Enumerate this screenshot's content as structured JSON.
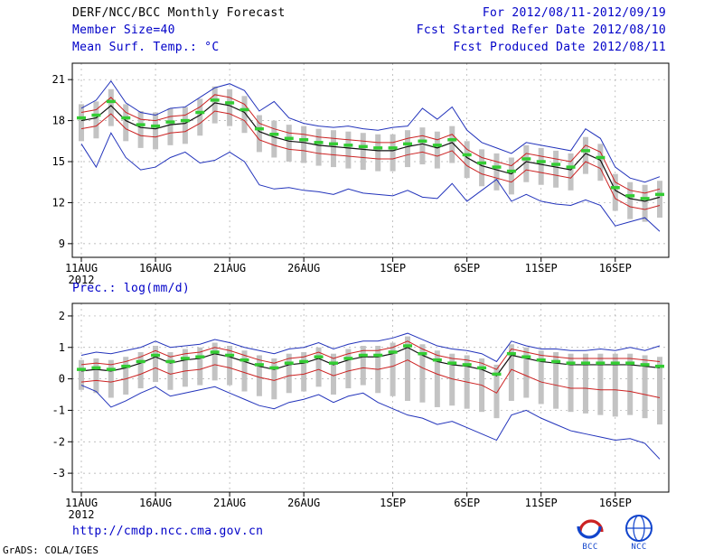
{
  "header": {
    "title": "DERF/NCC/BCC Monthly Forecast",
    "for_range": "For 2012/08/11-2012/09/19",
    "member_size": "Member Size=40",
    "refer_date": "Fcst Started Refer Date 2012/08/10",
    "temp_label": "Mean Surf. Temp.: °C",
    "produced_date": "Fcst Produced Date 2012/08/11"
  },
  "labels": {
    "precip": "Prec.: log(mm/d)"
  },
  "footer": {
    "url": "http://cmdp.ncc.cma.gov.cn",
    "grads_credit": "GrADS: COLA/IGES",
    "bcc_label": "BCC",
    "ncc_label": "NCC"
  },
  "colors": {
    "text_blue": "#0000c8",
    "line_blue": "#2233bb",
    "line_red": "#cc2222",
    "line_black": "#111111",
    "marker_green": "#33cc33",
    "bar_gray": "#c3c3c3",
    "grid_gray": "#aaaaaa"
  },
  "chart_data": [
    {
      "type": "line",
      "title": "Mean Surf. Temp.: °C",
      "xlabel": "",
      "ylabel": "°C",
      "grid": true,
      "legend": "none",
      "n_days": 40,
      "start_date": "2012/08/11",
      "end_date": "2012/09/19",
      "x_tick_labels": [
        "11AUG",
        "16AUG",
        "21AUG",
        "26AUG",
        "1SEP",
        "6SEP",
        "11SEP",
        "16SEP"
      ],
      "x_tick_days": [
        0,
        5,
        10,
        15,
        21,
        26,
        31,
        36
      ],
      "x_year_label": "2012",
      "yticks": [
        9,
        12,
        15,
        18,
        21
      ],
      "ylim": [
        8.0,
        22.2
      ],
      "bars": {
        "name": "ensemble-spread-bar",
        "top": [
          19.2,
          19.4,
          20.3,
          19.2,
          18.7,
          18.6,
          18.9,
          19.0,
          19.6,
          20.5,
          20.3,
          19.8,
          18.4,
          18.0,
          17.7,
          17.6,
          17.4,
          17.3,
          17.2,
          17.1,
          17.0,
          17.0,
          17.3,
          17.5,
          17.2,
          17.6,
          16.5,
          15.9,
          15.6,
          15.3,
          16.2,
          16.0,
          15.8,
          15.6,
          16.8,
          16.3,
          14.1,
          13.5,
          13.3,
          13.6
        ],
        "bottom": [
          16.5,
          16.7,
          17.6,
          16.5,
          16.0,
          15.9,
          16.2,
          16.3,
          16.9,
          17.8,
          17.6,
          17.1,
          15.7,
          15.3,
          15.0,
          14.9,
          14.7,
          14.6,
          14.5,
          14.4,
          14.3,
          14.3,
          14.6,
          14.8,
          14.5,
          14.9,
          13.8,
          13.2,
          12.9,
          12.6,
          13.5,
          13.3,
          13.1,
          12.9,
          14.1,
          13.6,
          11.4,
          10.8,
          10.6,
          10.9
        ]
      },
      "series": [
        {
          "name": "ensemble-max",
          "color": "#2233bb",
          "width": 1,
          "style": "line",
          "values": [
            18.9,
            19.5,
            20.9,
            19.3,
            18.6,
            18.4,
            18.9,
            19.0,
            19.7,
            20.4,
            20.7,
            20.2,
            18.7,
            19.4,
            18.2,
            17.8,
            17.6,
            17.5,
            17.6,
            17.4,
            17.3,
            17.5,
            17.6,
            18.9,
            18.1,
            19.0,
            17.3,
            16.4,
            16.0,
            15.6,
            16.4,
            16.2,
            16.0,
            15.8,
            17.4,
            16.7,
            14.6,
            13.8,
            13.5,
            13.9
          ]
        },
        {
          "name": "ensemble-min",
          "color": "#2233bb",
          "width": 1,
          "style": "line",
          "values": [
            16.3,
            14.6,
            17.1,
            15.3,
            14.4,
            14.6,
            15.3,
            15.7,
            14.9,
            15.1,
            15.7,
            15.0,
            13.3,
            13.0,
            13.1,
            12.9,
            12.8,
            12.6,
            13.0,
            12.7,
            12.6,
            12.5,
            12.9,
            12.4,
            12.3,
            13.4,
            12.1,
            12.9,
            13.7,
            12.1,
            12.6,
            12.1,
            11.9,
            11.8,
            12.2,
            11.8,
            10.3,
            10.6,
            10.9,
            9.9
          ]
        },
        {
          "name": "upper-quartile",
          "color": "#cc2222",
          "width": 1,
          "style": "line",
          "values": [
            18.6,
            18.8,
            19.7,
            18.6,
            18.1,
            18.0,
            18.3,
            18.4,
            19.0,
            19.9,
            19.7,
            19.2,
            17.8,
            17.4,
            17.1,
            17.0,
            16.8,
            16.7,
            16.6,
            16.5,
            16.4,
            16.4,
            16.7,
            16.9,
            16.6,
            17.0,
            15.9,
            15.3,
            15.0,
            14.7,
            15.6,
            15.4,
            15.2,
            15.0,
            16.2,
            15.7,
            13.5,
            12.9,
            12.7,
            13.0
          ]
        },
        {
          "name": "lower-quartile",
          "color": "#cc2222",
          "width": 1,
          "style": "line",
          "values": [
            17.4,
            17.6,
            18.5,
            17.4,
            16.9,
            16.8,
            17.1,
            17.2,
            17.8,
            18.7,
            18.5,
            18.0,
            16.6,
            16.2,
            15.9,
            15.8,
            15.6,
            15.5,
            15.4,
            15.3,
            15.2,
            15.2,
            15.5,
            15.7,
            15.4,
            15.8,
            14.7,
            14.1,
            13.8,
            13.5,
            14.4,
            14.2,
            14.0,
            13.8,
            15.0,
            14.5,
            12.3,
            11.7,
            11.5,
            11.8
          ]
        },
        {
          "name": "ensemble-median",
          "color": "#111111",
          "width": 1.2,
          "style": "line",
          "values": [
            18.0,
            18.2,
            19.1,
            18.0,
            17.5,
            17.4,
            17.7,
            17.8,
            18.4,
            19.3,
            19.1,
            18.6,
            17.2,
            16.8,
            16.5,
            16.4,
            16.2,
            16.1,
            16.0,
            15.9,
            15.8,
            15.8,
            16.1,
            16.3,
            16.0,
            16.4,
            15.3,
            14.7,
            14.4,
            14.1,
            15.0,
            14.8,
            14.6,
            14.4,
            15.6,
            15.1,
            12.9,
            12.3,
            12.1,
            12.4
          ]
        },
        {
          "name": "ensemble-mean",
          "color": "#33cc33",
          "width": 3.5,
          "style": "dash-markers",
          "values": [
            18.2,
            18.4,
            19.4,
            18.2,
            17.7,
            17.6,
            17.9,
            18.0,
            18.6,
            19.5,
            19.3,
            18.8,
            17.4,
            17.0,
            16.7,
            16.6,
            16.4,
            16.3,
            16.2,
            16.1,
            16.0,
            16.0,
            16.3,
            16.5,
            16.2,
            16.6,
            15.5,
            14.9,
            14.6,
            14.3,
            15.2,
            15.0,
            14.8,
            14.6,
            15.8,
            15.3,
            13.1,
            12.5,
            12.3,
            12.6
          ]
        }
      ]
    },
    {
      "type": "line",
      "title": "Prec.: log(mm/d)",
      "xlabel": "",
      "ylabel": "log(mm/d)",
      "grid": true,
      "legend": "none",
      "n_days": 40,
      "start_date": "2012/08/11",
      "end_date": "2012/09/19",
      "x_tick_labels": [
        "11AUG",
        "16AUG",
        "21AUG",
        "26AUG",
        "1SEP",
        "6SEP",
        "11SEP",
        "16SEP"
      ],
      "x_tick_days": [
        0,
        5,
        10,
        15,
        21,
        26,
        31,
        36
      ],
      "x_year_label": "2012",
      "yticks": [
        -3,
        -2,
        -1,
        0,
        1,
        2
      ],
      "ylim": [
        -3.6,
        2.4
      ],
      "bars": {
        "name": "ensemble-spread-bar",
        "top": [
          0.6,
          0.65,
          0.6,
          0.7,
          0.85,
          1.05,
          0.85,
          0.95,
          1.0,
          1.15,
          1.05,
          0.9,
          0.75,
          0.65,
          0.8,
          0.85,
          1.0,
          0.8,
          0.95,
          1.05,
          1.05,
          1.15,
          1.35,
          1.1,
          0.9,
          0.8,
          0.75,
          0.65,
          0.45,
          1.1,
          1.0,
          0.9,
          0.85,
          0.8,
          0.8,
          0.8,
          0.8,
          0.8,
          0.75,
          0.7
        ],
        "bottom": [
          -0.35,
          -0.45,
          -0.6,
          -0.5,
          -0.3,
          -0.1,
          -0.35,
          -0.25,
          -0.2,
          -0.05,
          -0.2,
          -0.4,
          -0.55,
          -0.65,
          -0.45,
          -0.4,
          -0.25,
          -0.5,
          -0.3,
          -0.2,
          -0.45,
          -0.55,
          -0.7,
          -0.75,
          -0.9,
          -0.85,
          -0.95,
          -1.05,
          -1.25,
          -0.7,
          -0.6,
          -0.8,
          -0.95,
          -1.05,
          -1.1,
          -1.15,
          -1.2,
          -1.15,
          -1.25,
          -1.45
        ]
      },
      "series": [
        {
          "name": "ensemble-max",
          "color": "#2233bb",
          "width": 1,
          "style": "line",
          "values": [
            0.75,
            0.85,
            0.8,
            0.9,
            1.0,
            1.2,
            1.0,
            1.05,
            1.1,
            1.25,
            1.15,
            1.0,
            0.9,
            0.8,
            0.95,
            1.0,
            1.15,
            0.95,
            1.1,
            1.2,
            1.2,
            1.3,
            1.45,
            1.25,
            1.05,
            0.95,
            0.9,
            0.8,
            0.55,
            1.2,
            1.05,
            0.95,
            0.95,
            0.9,
            0.9,
            0.95,
            0.9,
            1.0,
            0.9,
            1.05
          ]
        },
        {
          "name": "ensemble-min",
          "color": "#2233bb",
          "width": 1,
          "style": "line",
          "values": [
            -0.2,
            -0.4,
            -0.9,
            -0.7,
            -0.45,
            -0.25,
            -0.55,
            -0.45,
            -0.35,
            -0.25,
            -0.45,
            -0.65,
            -0.85,
            -0.95,
            -0.75,
            -0.65,
            -0.5,
            -0.75,
            -0.55,
            -0.45,
            -0.75,
            -0.95,
            -1.15,
            -1.25,
            -1.45,
            -1.35,
            -1.55,
            -1.75,
            -1.95,
            -1.15,
            -1.0,
            -1.25,
            -1.45,
            -1.65,
            -1.75,
            -1.85,
            -1.95,
            -1.9,
            -2.05,
            -2.55
          ]
        },
        {
          "name": "upper-quartile",
          "color": "#cc2222",
          "width": 1,
          "style": "line",
          "values": [
            0.45,
            0.5,
            0.45,
            0.55,
            0.7,
            0.9,
            0.7,
            0.8,
            0.85,
            1.0,
            0.9,
            0.75,
            0.6,
            0.5,
            0.65,
            0.7,
            0.85,
            0.65,
            0.8,
            0.9,
            0.9,
            1.0,
            1.2,
            0.95,
            0.75,
            0.65,
            0.6,
            0.5,
            0.3,
            0.95,
            0.85,
            0.75,
            0.7,
            0.65,
            0.65,
            0.65,
            0.65,
            0.65,
            0.6,
            0.55
          ]
        },
        {
          "name": "lower-quartile",
          "color": "#cc2222",
          "width": 1,
          "style": "line",
          "values": [
            -0.1,
            -0.05,
            -0.1,
            0.0,
            0.15,
            0.35,
            0.15,
            0.25,
            0.3,
            0.45,
            0.35,
            0.2,
            0.05,
            -0.05,
            0.1,
            0.15,
            0.3,
            0.1,
            0.25,
            0.35,
            0.3,
            0.4,
            0.6,
            0.35,
            0.15,
            0.0,
            -0.1,
            -0.2,
            -0.45,
            0.3,
            0.1,
            -0.1,
            -0.2,
            -0.3,
            -0.3,
            -0.35,
            -0.35,
            -0.4,
            -0.5,
            -0.6
          ]
        },
        {
          "name": "ensemble-median",
          "color": "#111111",
          "width": 1.2,
          "style": "line",
          "values": [
            0.25,
            0.3,
            0.25,
            0.35,
            0.5,
            0.7,
            0.5,
            0.6,
            0.65,
            0.8,
            0.7,
            0.55,
            0.4,
            0.3,
            0.45,
            0.5,
            0.65,
            0.45,
            0.6,
            0.7,
            0.7,
            0.8,
            1.0,
            0.75,
            0.55,
            0.45,
            0.4,
            0.3,
            0.1,
            0.75,
            0.65,
            0.55,
            0.5,
            0.45,
            0.45,
            0.45,
            0.45,
            0.45,
            0.4,
            0.35
          ]
        },
        {
          "name": "ensemble-mean",
          "color": "#33cc33",
          "width": 3.5,
          "style": "dash-markers",
          "values": [
            0.3,
            0.35,
            0.3,
            0.4,
            0.55,
            0.75,
            0.55,
            0.65,
            0.7,
            0.85,
            0.75,
            0.6,
            0.45,
            0.35,
            0.5,
            0.55,
            0.7,
            0.5,
            0.65,
            0.75,
            0.75,
            0.85,
            1.05,
            0.8,
            0.6,
            0.5,
            0.45,
            0.35,
            0.15,
            0.8,
            0.7,
            0.6,
            0.55,
            0.5,
            0.5,
            0.5,
            0.5,
            0.5,
            0.45,
            0.4
          ]
        }
      ]
    }
  ]
}
